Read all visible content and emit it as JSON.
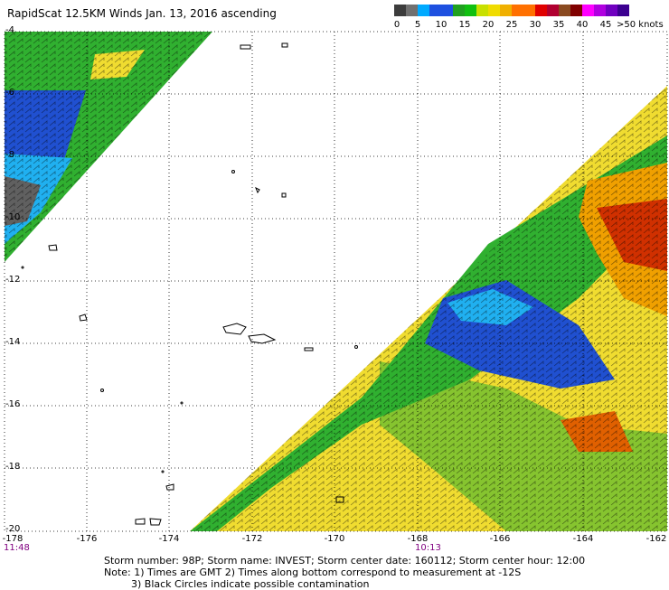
{
  "title": "RapidScat 12.5KM Winds Jan. 13, 2016 ascending",
  "colorbar": {
    "ticks": [
      "0",
      "5",
      "10",
      "15",
      "20",
      "25",
      "30",
      "35",
      "40",
      "45",
      ">50 knots"
    ],
    "colors": [
      "#3c3c3c",
      "#707070",
      "#00aaff",
      "#1e50e0",
      "#20a020",
      "#10c010",
      "#f0dc00",
      "#f0b000",
      "#ff7000",
      "#e00000",
      "#b00030",
      "#800000",
      "#a02060",
      "#ff00ff",
      "#b000e0",
      "#7000c0",
      "#3c0090"
    ]
  },
  "lat_labels": [
    "-4",
    "-6",
    "-8",
    "-10",
    "-12",
    "-14",
    "-16",
    "-18",
    "-20"
  ],
  "lon_labels": [
    "-178",
    "-176",
    "-174",
    "-172",
    "-170",
    "-168",
    "-166",
    "-164",
    "-162"
  ],
  "times": {
    "left": "11:48",
    "center": "10:13"
  },
  "footer": {
    "line1": "Storm number: 98P;  Storm name: INVEST;  Storm center date: 160112;  Storm center hour: 12:00",
    "line2": "Note: 1) Times are GMT  2) Times along bottom correspond to measurement at -12S",
    "line3": "3) Black Circles indicate possible contamination"
  }
}
